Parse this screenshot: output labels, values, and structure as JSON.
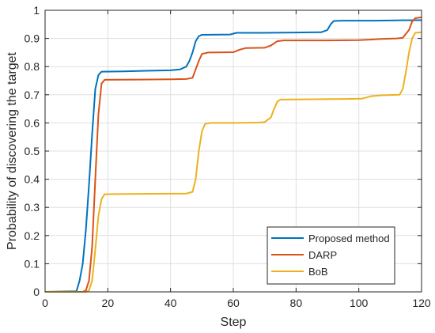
{
  "chart_data": {
    "type": "line",
    "title": "",
    "xlabel": "Step",
    "ylabel": "Probability of discovering the target",
    "xlim": [
      0,
      120
    ],
    "ylim": [
      0,
      1
    ],
    "x_ticks": [
      0,
      20,
      40,
      60,
      80,
      100,
      120
    ],
    "y_ticks": [
      0,
      0.1,
      0.2,
      0.3,
      0.4,
      0.5,
      0.6,
      0.7,
      0.8,
      0.9,
      1
    ],
    "x_tick_labels": [
      "0",
      "20",
      "40",
      "60",
      "80",
      "100",
      "120"
    ],
    "y_tick_labels": [
      "0",
      "0.1",
      "0.2",
      "0.3",
      "0.4",
      "0.5",
      "0.6",
      "0.7",
      "0.8",
      "0.9",
      "1"
    ],
    "grid": true,
    "legend_position": "bottom-right",
    "series": [
      {
        "name": "Proposed method",
        "color": "#0072BD",
        "points": [
          [
            0,
            0
          ],
          [
            10,
            0.002
          ],
          [
            11,
            0.04
          ],
          [
            12,
            0.1
          ],
          [
            13,
            0.22
          ],
          [
            14,
            0.38
          ],
          [
            15,
            0.56
          ],
          [
            16,
            0.72
          ],
          [
            17,
            0.77
          ],
          [
            18,
            0.782
          ],
          [
            25,
            0.783
          ],
          [
            32,
            0.785
          ],
          [
            40,
            0.787
          ],
          [
            43,
            0.79
          ],
          [
            45,
            0.8
          ],
          [
            46,
            0.82
          ],
          [
            47,
            0.85
          ],
          [
            48,
            0.89
          ],
          [
            49,
            0.908
          ],
          [
            50,
            0.913
          ],
          [
            59,
            0.914
          ],
          [
            61,
            0.92
          ],
          [
            70,
            0.92
          ],
          [
            80,
            0.921
          ],
          [
            88,
            0.922
          ],
          [
            90,
            0.93
          ],
          [
            91,
            0.95
          ],
          [
            92,
            0.962
          ],
          [
            95,
            0.963
          ],
          [
            105,
            0.963
          ],
          [
            110,
            0.964
          ],
          [
            120,
            0.965
          ]
        ]
      },
      {
        "name": "DARP",
        "color": "#D95319",
        "points": [
          [
            0,
            0
          ],
          [
            12,
            0
          ],
          [
            13,
            0.005
          ],
          [
            14,
            0.04
          ],
          [
            15,
            0.16
          ],
          [
            16,
            0.4
          ],
          [
            17,
            0.63
          ],
          [
            18,
            0.74
          ],
          [
            19,
            0.753
          ],
          [
            30,
            0.754
          ],
          [
            40,
            0.755
          ],
          [
            45,
            0.756
          ],
          [
            47,
            0.76
          ],
          [
            48,
            0.79
          ],
          [
            49,
            0.82
          ],
          [
            50,
            0.845
          ],
          [
            52,
            0.85
          ],
          [
            60,
            0.851
          ],
          [
            62,
            0.86
          ],
          [
            64,
            0.866
          ],
          [
            70,
            0.867
          ],
          [
            72,
            0.875
          ],
          [
            74,
            0.89
          ],
          [
            76,
            0.893
          ],
          [
            90,
            0.893
          ],
          [
            100,
            0.894
          ],
          [
            104,
            0.896
          ],
          [
            107,
            0.898
          ],
          [
            112,
            0.9
          ],
          [
            114,
            0.902
          ],
          [
            116,
            0.93
          ],
          [
            117,
            0.96
          ],
          [
            118,
            0.972
          ],
          [
            120,
            0.975
          ]
        ]
      },
      {
        "name": "BoB",
        "color": "#EDB120",
        "points": [
          [
            0,
            0
          ],
          [
            13,
            0
          ],
          [
            14,
            0.005
          ],
          [
            15,
            0.04
          ],
          [
            16,
            0.15
          ],
          [
            17,
            0.27
          ],
          [
            18,
            0.33
          ],
          [
            19,
            0.347
          ],
          [
            30,
            0.348
          ],
          [
            45,
            0.349
          ],
          [
            47,
            0.355
          ],
          [
            48,
            0.4
          ],
          [
            49,
            0.5
          ],
          [
            50,
            0.57
          ],
          [
            51,
            0.597
          ],
          [
            53,
            0.6
          ],
          [
            60,
            0.6
          ],
          [
            68,
            0.601
          ],
          [
            70,
            0.603
          ],
          [
            72,
            0.62
          ],
          [
            73,
            0.65
          ],
          [
            74,
            0.675
          ],
          [
            75,
            0.683
          ],
          [
            85,
            0.684
          ],
          [
            95,
            0.685
          ],
          [
            101,
            0.686
          ],
          [
            104,
            0.695
          ],
          [
            107,
            0.698
          ],
          [
            113,
            0.7
          ],
          [
            114,
            0.72
          ],
          [
            115,
            0.78
          ],
          [
            116,
            0.85
          ],
          [
            117,
            0.9
          ],
          [
            118,
            0.92
          ],
          [
            120,
            0.922
          ]
        ]
      }
    ]
  }
}
